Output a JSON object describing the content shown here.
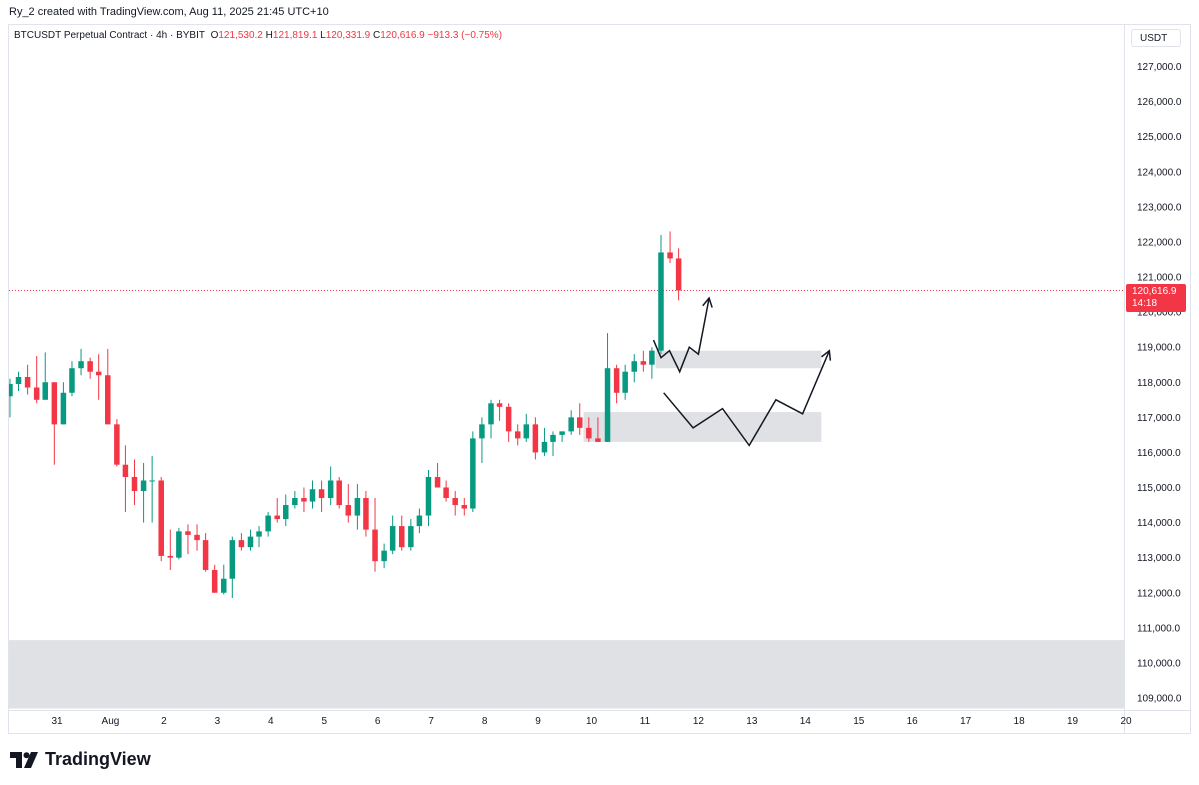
{
  "header": {
    "attribution": "Ry_2 created with TradingView.com, Aug 11, 2025 21:45 UTC+10"
  },
  "legend": {
    "symbol": "BTCUSDT Perpetual Contract · 4h · BYBIT",
    "open_key": "O",
    "open": "121,530.2",
    "high_key": "H",
    "high": "121,819.1",
    "low_key": "L",
    "low": "120,331.9",
    "close_key": "C",
    "close": "120,616.9",
    "change": "−913.3 (−0.75%)"
  },
  "currency": "USDT",
  "price_tag": {
    "price": "120,616.9",
    "countdown": "14:18"
  },
  "logo": {
    "text": "TradingView"
  },
  "colors": {
    "up": "#089981",
    "down": "#f23645",
    "zone": "#e0e1e4",
    "grid": "#e0e3eb"
  },
  "chart_data": {
    "type": "candlestick",
    "title": "BTCUSDT Perpetual Contract · 4h · BYBIT",
    "ylim": [
      108700,
      127800
    ],
    "y_ticks": [
      "127,000.0",
      "126,000.0",
      "125,000.0",
      "124,000.0",
      "123,000.0",
      "122,000.0",
      "121,000.0",
      "120,000.0",
      "119,000.0",
      "118,000.0",
      "117,000.0",
      "116,000.0",
      "115,000.0",
      "114,000.0",
      "113,000.0",
      "112,000.0",
      "111,000.0",
      "110,000.0",
      "109,000.0"
    ],
    "y_tick_values": [
      127000,
      126000,
      125000,
      124000,
      123000,
      122000,
      121000,
      120000,
      119000,
      118000,
      117000,
      116000,
      115000,
      114000,
      113000,
      112000,
      111000,
      110000,
      109000
    ],
    "x_ticks": [
      "31",
      "Aug",
      "2",
      "3",
      "4",
      "5",
      "6",
      "7",
      "8",
      "9",
      "10",
      "11",
      "12",
      "13",
      "14",
      "15",
      "16",
      "17",
      "18",
      "19",
      "20"
    ],
    "x_tick_days": [
      0,
      1,
      2,
      3,
      4,
      5,
      6,
      7,
      8,
      9,
      10,
      11,
      12,
      13,
      14,
      15,
      16,
      17,
      18,
      19,
      20
    ],
    "last_price": 120616.9,
    "candles": [
      {
        "t": -0.88,
        "o": 117600,
        "h": 118100,
        "l": 117000,
        "c": 117950
      },
      {
        "t": -0.72,
        "o": 117950,
        "h": 118300,
        "l": 117750,
        "c": 118150
      },
      {
        "t": -0.55,
        "o": 118150,
        "h": 118500,
        "l": 117650,
        "c": 117850
      },
      {
        "t": -0.38,
        "o": 117850,
        "h": 118750,
        "l": 117400,
        "c": 117500
      },
      {
        "t": -0.22,
        "o": 117500,
        "h": 118850,
        "l": 117500,
        "c": 118000
      },
      {
        "t": -0.05,
        "o": 118000,
        "h": 118000,
        "l": 115650,
        "c": 116800
      },
      {
        "t": 0.12,
        "o": 116800,
        "h": 118000,
        "l": 116800,
        "c": 117700
      },
      {
        "t": 0.28,
        "o": 117700,
        "h": 118600,
        "l": 117600,
        "c": 118400
      },
      {
        "t": 0.45,
        "o": 118400,
        "h": 118950,
        "l": 118200,
        "c": 118600
      },
      {
        "t": 0.62,
        "o": 118600,
        "h": 118700,
        "l": 118100,
        "c": 118300
      },
      {
        "t": 0.78,
        "o": 118300,
        "h": 118800,
        "l": 117500,
        "c": 118200
      },
      {
        "t": 0.95,
        "o": 118200,
        "h": 118950,
        "l": 116800,
        "c": 116800
      },
      {
        "t": 1.12,
        "o": 116800,
        "h": 116950,
        "l": 115600,
        "c": 115650
      },
      {
        "t": 1.28,
        "o": 115650,
        "h": 116200,
        "l": 114300,
        "c": 115300
      },
      {
        "t": 1.45,
        "o": 115300,
        "h": 115800,
        "l": 114500,
        "c": 114900
      },
      {
        "t": 1.62,
        "o": 114900,
        "h": 115700,
        "l": 114000,
        "c": 115200
      },
      {
        "t": 1.78,
        "o": 115200,
        "h": 115900,
        "l": 114000,
        "c": 115200
      },
      {
        "t": 1.95,
        "o": 115200,
        "h": 115300,
        "l": 112900,
        "c": 113050
      },
      {
        "t": 2.12,
        "o": 113050,
        "h": 113800,
        "l": 112650,
        "c": 113000
      },
      {
        "t": 2.28,
        "o": 113000,
        "h": 113850,
        "l": 112950,
        "c": 113750
      },
      {
        "t": 2.45,
        "o": 113750,
        "h": 113950,
        "l": 113100,
        "c": 113650
      },
      {
        "t": 2.62,
        "o": 113650,
        "h": 113950,
        "l": 113200,
        "c": 113500
      },
      {
        "t": 2.78,
        "o": 113500,
        "h": 113700,
        "l": 112600,
        "c": 112650
      },
      {
        "t": 2.95,
        "o": 112650,
        "h": 112800,
        "l": 112000,
        "c": 112000
      },
      {
        "t": 3.12,
        "o": 112000,
        "h": 112800,
        "l": 111950,
        "c": 112400
      },
      {
        "t": 3.28,
        "o": 112400,
        "h": 113600,
        "l": 111850,
        "c": 113500
      },
      {
        "t": 3.45,
        "o": 113500,
        "h": 113700,
        "l": 113200,
        "c": 113300
      },
      {
        "t": 3.62,
        "o": 113300,
        "h": 113800,
        "l": 113200,
        "c": 113600
      },
      {
        "t": 3.78,
        "o": 113600,
        "h": 113900,
        "l": 113300,
        "c": 113750
      },
      {
        "t": 3.95,
        "o": 113750,
        "h": 114300,
        "l": 113600,
        "c": 114200
      },
      {
        "t": 4.12,
        "o": 114200,
        "h": 114700,
        "l": 114000,
        "c": 114100
      },
      {
        "t": 4.28,
        "o": 114100,
        "h": 114800,
        "l": 113900,
        "c": 114500
      },
      {
        "t": 4.45,
        "o": 114500,
        "h": 114900,
        "l": 114400,
        "c": 114700
      },
      {
        "t": 4.62,
        "o": 114700,
        "h": 115000,
        "l": 114300,
        "c": 114600
      },
      {
        "t": 4.78,
        "o": 114600,
        "h": 115200,
        "l": 114400,
        "c": 114950
      },
      {
        "t": 4.95,
        "o": 114950,
        "h": 115200,
        "l": 114300,
        "c": 114700
      },
      {
        "t": 5.12,
        "o": 114700,
        "h": 115600,
        "l": 114500,
        "c": 115200
      },
      {
        "t": 5.28,
        "o": 115200,
        "h": 115300,
        "l": 114400,
        "c": 114500
      },
      {
        "t": 5.45,
        "o": 114500,
        "h": 115100,
        "l": 114000,
        "c": 114200
      },
      {
        "t": 5.62,
        "o": 114200,
        "h": 115100,
        "l": 113800,
        "c": 114700
      },
      {
        "t": 5.78,
        "o": 114700,
        "h": 114900,
        "l": 113600,
        "c": 113800
      },
      {
        "t": 5.95,
        "o": 113800,
        "h": 114700,
        "l": 112600,
        "c": 112900
      },
      {
        "t": 6.12,
        "o": 112900,
        "h": 113400,
        "l": 112700,
        "c": 113200
      },
      {
        "t": 6.28,
        "o": 113200,
        "h": 114200,
        "l": 113100,
        "c": 113900
      },
      {
        "t": 6.45,
        "o": 113900,
        "h": 114200,
        "l": 113200,
        "c": 113300
      },
      {
        "t": 6.62,
        "o": 113300,
        "h": 114100,
        "l": 113200,
        "c": 113900
      },
      {
        "t": 6.78,
        "o": 113900,
        "h": 114400,
        "l": 113700,
        "c": 114200
      },
      {
        "t": 6.95,
        "o": 114200,
        "h": 115500,
        "l": 113900,
        "c": 115300
      },
      {
        "t": 7.12,
        "o": 115300,
        "h": 115700,
        "l": 115000,
        "c": 115000
      },
      {
        "t": 7.28,
        "o": 115000,
        "h": 115200,
        "l": 114600,
        "c": 114700
      },
      {
        "t": 7.45,
        "o": 114700,
        "h": 114900,
        "l": 114200,
        "c": 114500
      },
      {
        "t": 7.62,
        "o": 114500,
        "h": 114700,
        "l": 114200,
        "c": 114400
      },
      {
        "t": 7.78,
        "o": 114400,
        "h": 116600,
        "l": 114300,
        "c": 116400
      },
      {
        "t": 7.95,
        "o": 116400,
        "h": 117000,
        "l": 115700,
        "c": 116800
      },
      {
        "t": 8.12,
        "o": 116800,
        "h": 117500,
        "l": 116400,
        "c": 117400
      },
      {
        "t": 8.28,
        "o": 117400,
        "h": 117500,
        "l": 116900,
        "c": 117300
      },
      {
        "t": 8.45,
        "o": 117300,
        "h": 117400,
        "l": 116300,
        "c": 116600
      },
      {
        "t": 8.62,
        "o": 116600,
        "h": 116800,
        "l": 116200,
        "c": 116400
      },
      {
        "t": 8.78,
        "o": 116400,
        "h": 117100,
        "l": 116300,
        "c": 116800
      },
      {
        "t": 8.95,
        "o": 116800,
        "h": 117000,
        "l": 115800,
        "c": 116000
      },
      {
        "t": 9.12,
        "o": 116000,
        "h": 116700,
        "l": 115900,
        "c": 116300
      },
      {
        "t": 9.28,
        "o": 116300,
        "h": 116600,
        "l": 115900,
        "c": 116500
      },
      {
        "t": 9.45,
        "o": 116500,
        "h": 116600,
        "l": 116300,
        "c": 116600
      },
      {
        "t": 9.62,
        "o": 116600,
        "h": 117200,
        "l": 116500,
        "c": 117000
      },
      {
        "t": 9.78,
        "o": 117000,
        "h": 117400,
        "l": 116500,
        "c": 116700
      },
      {
        "t": 9.95,
        "o": 116700,
        "h": 117000,
        "l": 116300,
        "c": 116400
      },
      {
        "t": 10.12,
        "o": 116400,
        "h": 117000,
        "l": 116300,
        "c": 116300
      },
      {
        "t": 10.3,
        "o": 116300,
        "h": 119400,
        "l": 116300,
        "c": 118400
      },
      {
        "t": 10.47,
        "o": 118400,
        "h": 118500,
        "l": 117400,
        "c": 117700
      },
      {
        "t": 10.63,
        "o": 117700,
        "h": 118500,
        "l": 117500,
        "c": 118300
      },
      {
        "t": 10.8,
        "o": 118300,
        "h": 118800,
        "l": 118000,
        "c": 118600
      },
      {
        "t": 10.97,
        "o": 118600,
        "h": 118900,
        "l": 118300,
        "c": 118500
      },
      {
        "t": 11.13,
        "o": 118500,
        "h": 119000,
        "l": 118100,
        "c": 118900
      },
      {
        "t": 11.3,
        "o": 118900,
        "h": 122200,
        "l": 118800,
        "c": 121700
      },
      {
        "t": 11.47,
        "o": 121700,
        "h": 122300,
        "l": 121400,
        "c": 121530
      },
      {
        "t": 11.63,
        "o": 121530.2,
        "h": 121819.1,
        "l": 120331.9,
        "c": 120616.9
      }
    ],
    "zones": [
      {
        "x0": -1.0,
        "x1": 20.1,
        "y0": 108700,
        "y1": 110650
      },
      {
        "x0": 9.85,
        "x1": 14.3,
        "y0": 116300,
        "y1": 117150
      },
      {
        "x0": 11.2,
        "x1": 14.3,
        "y0": 118400,
        "y1": 118900
      }
    ],
    "drawings": [
      [
        [
          11.16,
          119200
        ],
        [
          11.3,
          118700
        ],
        [
          11.46,
          118900
        ],
        [
          11.65,
          118300
        ],
        [
          11.83,
          119000
        ],
        [
          12.0,
          118800
        ],
        [
          12.2,
          120400
        ]
      ],
      [
        [
          11.35,
          117700
        ],
        [
          11.9,
          116700
        ],
        [
          12.45,
          117250
        ],
        [
          12.95,
          116200
        ],
        [
          13.45,
          117500
        ],
        [
          13.95,
          117100
        ],
        [
          14.45,
          118900
        ]
      ]
    ]
  }
}
